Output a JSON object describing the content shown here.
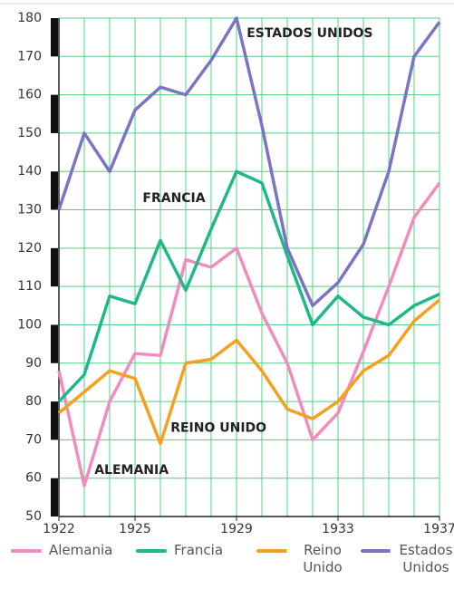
{
  "chart_data": {
    "type": "line",
    "x": [
      1922,
      1923,
      1924,
      1925,
      1926,
      1927,
      1928,
      1929,
      1930,
      1931,
      1932,
      1933,
      1934,
      1935,
      1936,
      1937
    ],
    "series": [
      {
        "name": "Alemania",
        "color": "#f08cc0",
        "values": [
          88,
          58,
          80,
          92.5,
          92,
          117,
          115,
          120,
          103,
          90,
          70,
          77,
          93,
          110,
          128,
          137
        ]
      },
      {
        "name": "Francia",
        "color": "#1fb88a",
        "values": [
          80,
          87,
          107.5,
          105.5,
          122,
          109,
          125,
          140,
          137,
          118,
          100,
          107.5,
          102,
          100,
          105,
          108
        ]
      },
      {
        "name": "Reino Unido",
        "color": "#f5a01f",
        "values": [
          77,
          82.5,
          88,
          86,
          69,
          90,
          91,
          96,
          88,
          78,
          75.5,
          80,
          88,
          92,
          101,
          106.5
        ]
      },
      {
        "name": "Estados Unidos",
        "color": "#7b74c4",
        "values": [
          130,
          150,
          140,
          156,
          162,
          160,
          169,
          180,
          152,
          120,
          105,
          111,
          121,
          140,
          170,
          179
        ]
      }
    ],
    "annotations": [
      {
        "text": "ESTADOS UNIDOS",
        "x": 1929.4,
        "y": 176
      },
      {
        "text": "FRANCIA",
        "x": 1925.3,
        "y": 133
      },
      {
        "text": "REINO UNIDO",
        "x": 1926.4,
        "y": 73
      },
      {
        "text": "ALEMANIA",
        "x": 1923.4,
        "y": 62
      }
    ],
    "xlim": [
      1922,
      1937
    ],
    "xticks": [
      1922,
      1925,
      1929,
      1933,
      1937
    ],
    "ylim": [
      50,
      180
    ],
    "yticks": [
      50,
      60,
      70,
      80,
      90,
      100,
      110,
      120,
      130,
      140,
      150,
      160,
      170,
      180
    ],
    "grid": true
  }
}
